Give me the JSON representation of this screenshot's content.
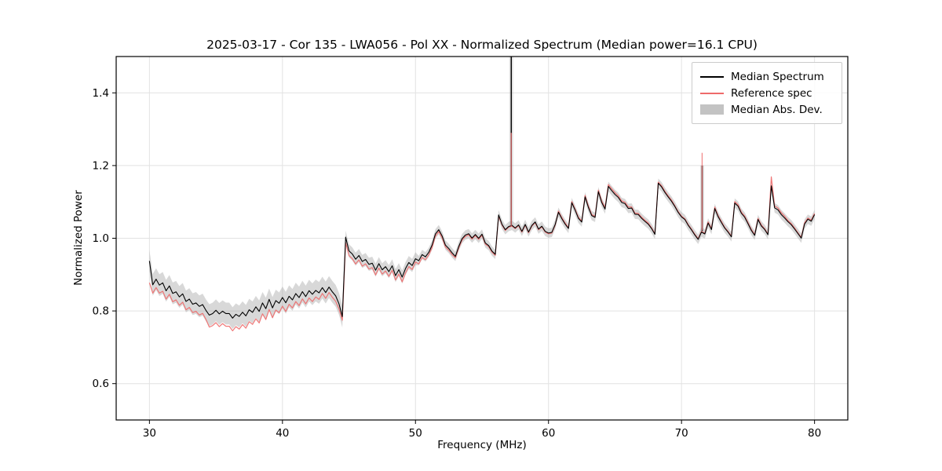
{
  "figure": {
    "title": "2025-03-17 - Cor 135 - LWA056 - Pol XX - Normalized Spectrum (Median power=16.1 CPU)",
    "xlabel": "Frequency (MHz)",
    "ylabel": "Normalized Power"
  },
  "legend": {
    "items": [
      {
        "label": "Median Spectrum",
        "type": "line",
        "color": "#000000"
      },
      {
        "label": "Reference spec",
        "type": "line",
        "color": "#ee6a6a"
      },
      {
        "label": "Median Abs. Dev.",
        "type": "patch",
        "color": "#c3c3c3"
      }
    ]
  },
  "chart_data": {
    "type": "line",
    "title": "2025-03-17 - Cor 135 - LWA056 - Pol XX - Normalized Spectrum (Median power=16.1 CPU)",
    "xlabel": "Frequency (MHz)",
    "ylabel": "Normalized Power",
    "xlim": [
      27.5,
      82.5
    ],
    "ylim": [
      0.5,
      1.5
    ],
    "x_ticks": [
      30,
      40,
      50,
      60,
      70,
      80
    ],
    "y_ticks": [
      0.6,
      0.8,
      1.0,
      1.2,
      1.4
    ],
    "grid": true,
    "x_start": 30.0,
    "x_step": 0.25,
    "noise_amplitude": 0.004,
    "series": [
      {
        "name": "Median Spectrum",
        "color": "#000000",
        "values": [
          0.935,
          0.875,
          0.885,
          0.87,
          0.875,
          0.855,
          0.865,
          0.845,
          0.85,
          0.835,
          0.845,
          0.825,
          0.835,
          0.815,
          0.825,
          0.81,
          0.82,
          0.805,
          0.785,
          0.795,
          0.8,
          0.795,
          0.8,
          0.79,
          0.795,
          0.78,
          0.79,
          0.785,
          0.8,
          0.79,
          0.805,
          0.795,
          0.815,
          0.8,
          0.82,
          0.81,
          0.828,
          0.812,
          0.83,
          0.818,
          0.84,
          0.822,
          0.842,
          0.83,
          0.848,
          0.835,
          0.852,
          0.84,
          0.858,
          0.845,
          0.86,
          0.85,
          0.868,
          0.852,
          0.862,
          0.855,
          0.845,
          0.82,
          0.785,
          1.0,
          0.965,
          0.955,
          0.945,
          0.95,
          0.935,
          0.94,
          0.925,
          0.93,
          0.915,
          0.93,
          0.91,
          0.92,
          0.905,
          0.928,
          0.9,
          0.912,
          0.895,
          0.915,
          0.93,
          0.922,
          0.945,
          0.935,
          0.952,
          0.945,
          0.965,
          0.985,
          1.01,
          1.02,
          1.005,
          0.985,
          0.97,
          0.96,
          0.952,
          0.975,
          0.995,
          1.008,
          1.015,
          0.998,
          1.01,
          1.002,
          1.008,
          0.99,
          0.978,
          0.968,
          0.955,
          1.065,
          1.04,
          1.025,
          1.03,
          1.035,
          1.03,
          1.04,
          1.022,
          1.035,
          1.02,
          1.035,
          1.045,
          1.025,
          1.035,
          1.02,
          1.012,
          1.02,
          1.035,
          1.075,
          1.055,
          1.04,
          1.028,
          1.095,
          1.075,
          1.055,
          1.042,
          1.11,
          1.085,
          1.065,
          1.055,
          1.125,
          1.1,
          1.082,
          1.145,
          1.135,
          1.12,
          1.11,
          1.1,
          1.095,
          1.085,
          1.08,
          1.07,
          1.065,
          1.055,
          1.048,
          1.04,
          1.028,
          1.012,
          1.155,
          1.14,
          1.128,
          1.115,
          1.1,
          1.088,
          1.075,
          1.062,
          1.05,
          1.038,
          1.022,
          1.01,
          1.0,
          1.02,
          1.015,
          1.04,
          1.025,
          1.08,
          1.06,
          1.045,
          1.028,
          1.015,
          1.005,
          1.1,
          1.085,
          1.07,
          1.055,
          1.04,
          1.025,
          1.012,
          1.05,
          1.035,
          1.022,
          1.01,
          1.145,
          1.085,
          1.075,
          1.065,
          1.055,
          1.045,
          1.035,
          1.022,
          1.01,
          1.0,
          1.04,
          1.055,
          1.045,
          1.065
        ]
      },
      {
        "name": "Reference spec",
        "color": "#ee6a6a",
        "values": [
          0.875,
          0.852,
          0.862,
          0.848,
          0.852,
          0.832,
          0.842,
          0.822,
          0.828,
          0.812,
          0.822,
          0.802,
          0.812,
          0.792,
          0.802,
          0.786,
          0.796,
          0.78,
          0.752,
          0.762,
          0.766,
          0.76,
          0.766,
          0.755,
          0.76,
          0.745,
          0.756,
          0.75,
          0.766,
          0.756,
          0.772,
          0.762,
          0.782,
          0.768,
          0.79,
          0.78,
          0.8,
          0.785,
          0.804,
          0.792,
          0.816,
          0.798,
          0.82,
          0.808,
          0.826,
          0.813,
          0.832,
          0.82,
          0.838,
          0.825,
          0.842,
          0.832,
          0.852,
          0.836,
          0.847,
          0.84,
          0.83,
          0.806,
          0.775,
          0.985,
          0.952,
          0.942,
          0.932,
          0.938,
          0.922,
          0.928,
          0.912,
          0.918,
          0.902,
          0.918,
          0.898,
          0.908,
          0.892,
          0.916,
          0.888,
          0.9,
          0.882,
          0.903,
          0.919,
          0.911,
          0.936,
          0.926,
          0.944,
          0.937,
          0.958,
          0.978,
          1.004,
          1.015,
          1.0,
          0.98,
          0.965,
          0.955,
          0.948,
          0.971,
          0.991,
          1.004,
          1.012,
          0.995,
          1.007,
          0.999,
          1.005,
          0.987,
          0.975,
          0.965,
          0.952,
          1.062,
          1.038,
          1.023,
          1.028,
          1.033,
          1.028,
          1.038,
          1.02,
          1.033,
          1.018,
          1.033,
          1.043,
          1.023,
          1.033,
          1.018,
          1.01,
          1.018,
          1.033,
          1.078,
          1.058,
          1.043,
          1.03,
          1.098,
          1.078,
          1.058,
          1.045,
          1.114,
          1.089,
          1.068,
          1.058,
          1.129,
          1.104,
          1.086,
          1.15,
          1.14,
          1.125,
          1.114,
          1.104,
          1.099,
          1.089,
          1.083,
          1.073,
          1.068,
          1.058,
          1.051,
          1.043,
          1.03,
          1.014,
          1.158,
          1.143,
          1.131,
          1.118,
          1.103,
          1.09,
          1.077,
          1.064,
          1.052,
          1.04,
          1.024,
          1.012,
          1.002,
          1.022,
          1.017,
          1.043,
          1.028,
          1.084,
          1.063,
          1.048,
          1.03,
          1.017,
          1.007,
          1.104,
          1.089,
          1.073,
          1.058,
          1.043,
          1.028,
          1.014,
          1.053,
          1.038,
          1.024,
          1.012,
          1.17,
          1.09,
          1.08,
          1.07,
          1.06,
          1.048,
          1.038,
          1.025,
          1.012,
          1.002,
          1.043,
          1.058,
          1.048,
          1.068
        ]
      }
    ],
    "mad_band": {
      "name": "Median Abs. Dev.",
      "color": "#a8a8a8",
      "opacity": 0.45,
      "segments": [
        {
          "x_end": 44.5,
          "half_width": 0.03
        },
        {
          "x_end": 50.0,
          "half_width": 0.018
        },
        {
          "x_end": 82.5,
          "half_width": 0.013
        }
      ]
    },
    "spikes": [
      {
        "x": 57.2,
        "median_top": 1.5,
        "reference_top": 1.29
      },
      {
        "x": 71.55,
        "median_top": 1.2,
        "reference_top": 1.235
      }
    ]
  }
}
